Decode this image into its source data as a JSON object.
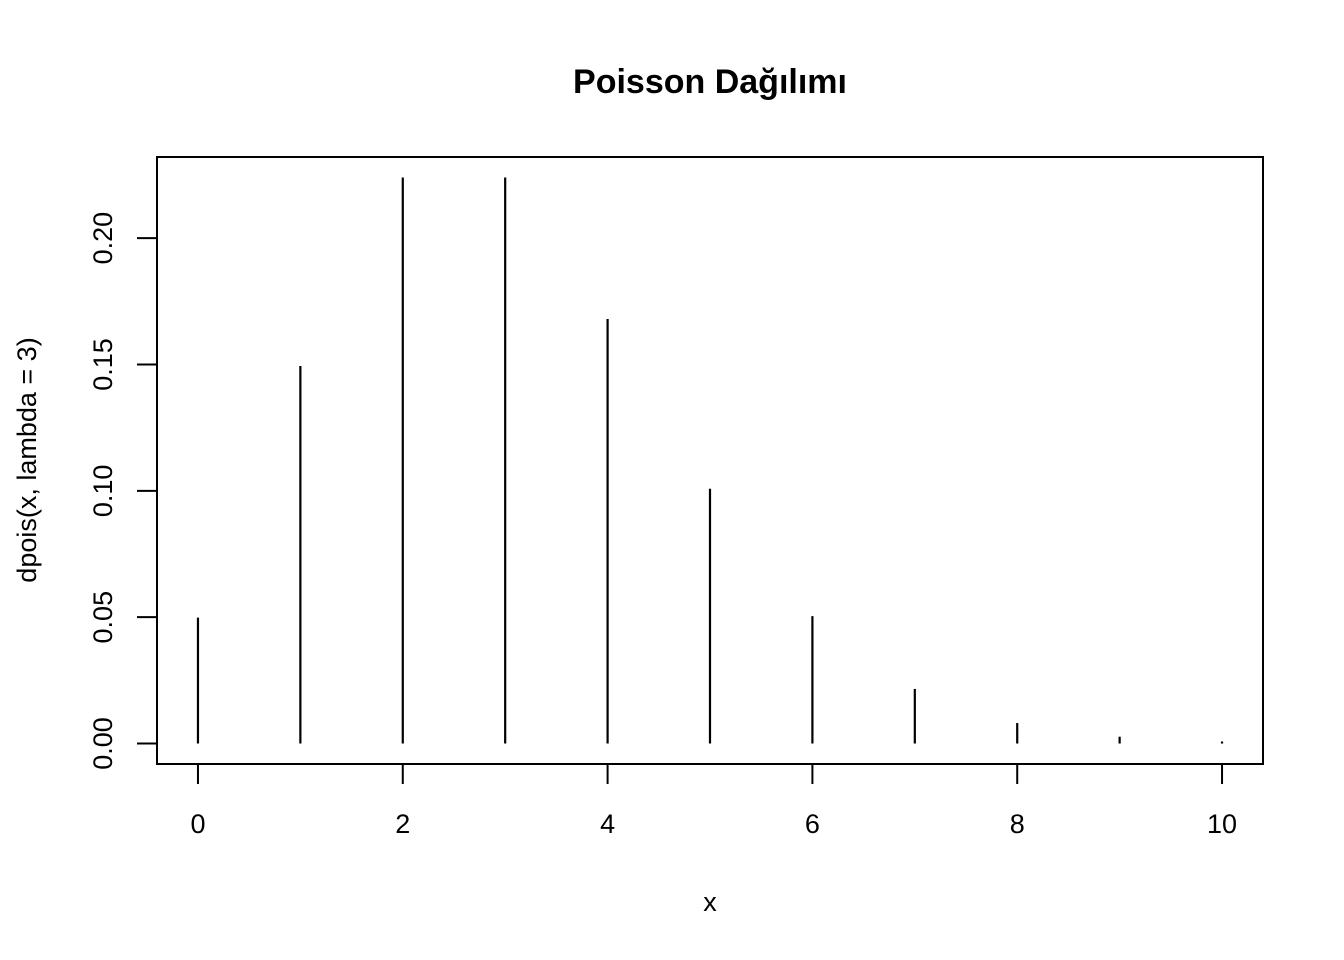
{
  "chart_data": {
    "type": "bar",
    "style": "vertical-lines",
    "title": "Poisson Dağılımı",
    "xlabel": "x",
    "ylabel": "dpois(x, lambda = 3)",
    "x": [
      0,
      1,
      2,
      3,
      4,
      5,
      6,
      7,
      8,
      9,
      10
    ],
    "values": [
      0.0498,
      0.1494,
      0.224,
      0.224,
      0.168,
      0.1008,
      0.0504,
      0.0216,
      0.0081,
      0.0027,
      0.0008
    ],
    "xlim": [
      -0.4,
      10.4
    ],
    "ylim": [
      -0.0081,
      0.2321
    ],
    "x_ticks": [
      0,
      2,
      4,
      6,
      8,
      10
    ],
    "x_tick_labels": [
      "0",
      "2",
      "4",
      "6",
      "8",
      "10"
    ],
    "y_ticks": [
      0.0,
      0.05,
      0.1,
      0.15,
      0.2
    ],
    "y_tick_labels": [
      "0.00",
      "0.05",
      "0.10",
      "0.15",
      "0.20"
    ],
    "grid": false,
    "legend": "none",
    "line_color": "#000000",
    "frame_color": "#000000"
  }
}
